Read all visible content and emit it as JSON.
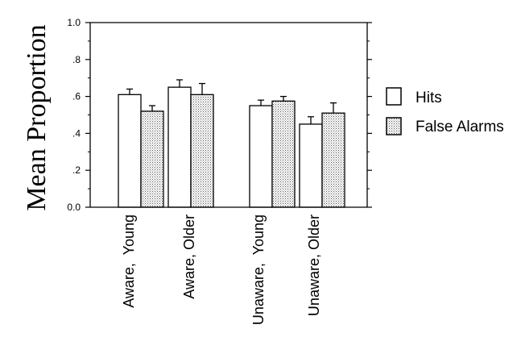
{
  "chart_data": {
    "type": "bar",
    "title": "",
    "xlabel": "",
    "ylabel": "Mean Proportion",
    "ylim": [
      0,
      1
    ],
    "yticks": [
      0,
      0.2,
      0.4,
      0.6,
      0.8,
      1.0
    ],
    "ytick_labels": [
      "0.0",
      ".2",
      ".4",
      ".6",
      ".8",
      "1.0"
    ],
    "categories": [
      "Aware,  Young",
      "Aware, Older",
      "Unaware,  Young",
      "Unaware, Older"
    ],
    "series": [
      {
        "name": "Hits",
        "fill": "#ffffff",
        "values": [
          0.61,
          0.65,
          0.55,
          0.45
        ],
        "errors": [
          0.03,
          0.04,
          0.03,
          0.04
        ]
      },
      {
        "name": "False Alarms",
        "fill": "#cfcfcf",
        "values": [
          0.52,
          0.61,
          0.575,
          0.51
        ],
        "errors": [
          0.03,
          0.06,
          0.025,
          0.055
        ]
      }
    ],
    "grid": false,
    "legend_position": "right"
  }
}
